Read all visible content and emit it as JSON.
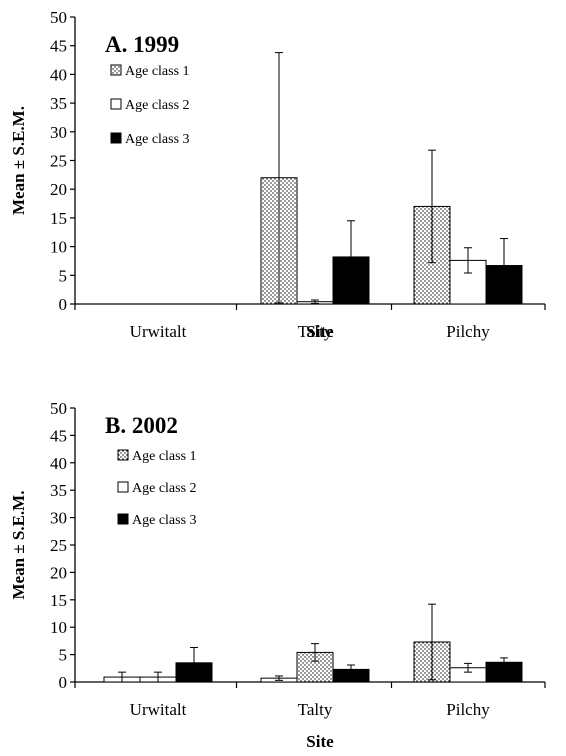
{
  "chart_data": [
    {
      "type": "bar",
      "title": "A. 1999",
      "xlabel": "Site",
      "ylabel": "Mean ± S.E.M.",
      "ylim": [
        0,
        50
      ],
      "yticks": [
        0,
        5,
        10,
        15,
        20,
        25,
        30,
        35,
        40,
        45,
        50
      ],
      "categories": [
        "Urwitalt",
        "Talty",
        "Pilchy"
      ],
      "legend_position": "top-left",
      "series": [
        {
          "name": "Age class 1",
          "pattern": "dotted",
          "values": [
            0,
            22.0,
            17.0
          ],
          "errors": [
            0,
            21.8,
            9.8
          ]
        },
        {
          "name": "Age class 2",
          "pattern": "white",
          "values": [
            0,
            0.4,
            7.6
          ],
          "errors": [
            0,
            0.3,
            2.2
          ]
        },
        {
          "name": "Age class 3",
          "pattern": "black",
          "values": [
            0,
            8.2,
            6.7
          ],
          "errors": [
            0,
            6.3,
            4.7
          ]
        }
      ]
    },
    {
      "type": "bar",
      "title": "B. 2002",
      "xlabel": "Site",
      "ylabel": "Mean ± S.E.M.",
      "ylim": [
        0,
        50
      ],
      "yticks": [
        0,
        5,
        10,
        15,
        20,
        25,
        30,
        35,
        40,
        45,
        50
      ],
      "categories": [
        "Urwitalt",
        "Talty",
        "Pilchy"
      ],
      "legend_position": "top-left",
      "series": [
        {
          "name": "Age class 1",
          "pattern": "dotted",
          "values": [
            0,
            5.4,
            7.3
          ],
          "errors": [
            0,
            1.6,
            6.9
          ]
        },
        {
          "name": "Age class 2",
          "pattern": "white",
          "values": [
            0.9,
            0.7,
            2.6
          ],
          "errors": [
            0.9,
            0.4,
            0.8
          ]
        },
        {
          "name": "Age class 3",
          "pattern": "black",
          "values": [
            3.5,
            2.3,
            3.6
          ],
          "errors": [
            2.8,
            0.8,
            0.8
          ]
        }
      ],
      "bar_order": [
        [
          "Age class 2",
          "Age class2",
          "Age class 3"
        ],
        [
          "Age class 2",
          "Age class 1",
          "Age class 3"
        ],
        [
          "Age class 1",
          "Age class 2",
          "Age class 3"
        ]
      ]
    }
  ]
}
